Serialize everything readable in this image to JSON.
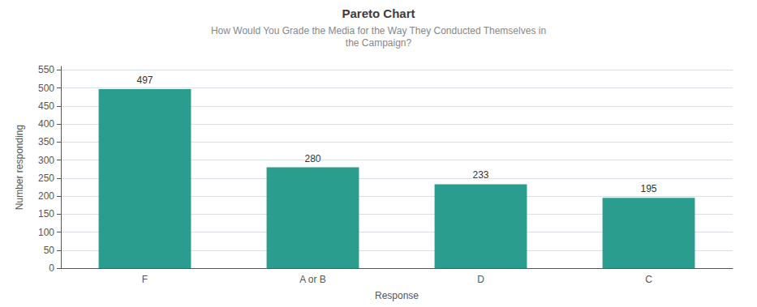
{
  "chart_data": {
    "type": "bar",
    "title": "Pareto Chart",
    "subtitle": "How Would You Grade the Media for the Way They Conducted Themselves in\nthe Campaign?",
    "categories": [
      "F",
      "A or B",
      "D",
      "C"
    ],
    "values": [
      497,
      280,
      233,
      195
    ],
    "color": "#2a9d8f",
    "xlabel": "Response",
    "ylabel": "Number responding",
    "ylim": [
      0,
      560
    ],
    "yticks": [
      0,
      50,
      100,
      150,
      200,
      250,
      300,
      350,
      400,
      450,
      500,
      550
    ],
    "grid": true,
    "data_labels": true
  }
}
